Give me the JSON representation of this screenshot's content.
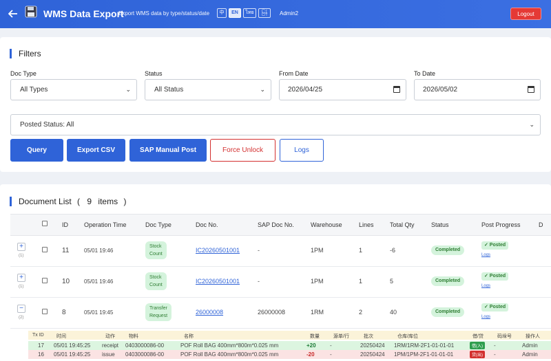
{
  "header": {
    "back_icon": "arrow-left-icon",
    "logo_icon": "floppy-disk-icon",
    "title": "WMS Data Export",
    "subtitle": "Export WMS data by type/status/date",
    "languages": [
      "中",
      "EN",
      "ไทย",
      "မြန်"
    ],
    "active_language": "EN",
    "user": "Admin2",
    "logout_label": "Logout"
  },
  "filters": {
    "title": "Filters",
    "doc_type_label": "Doc Type",
    "doc_type_value": "All Types",
    "status_label": "Status",
    "status_value": "All Status",
    "from_date_label": "From Date",
    "from_date_value": "2026/04/25",
    "to_date_label": "To Date",
    "to_date_value": "2026/05/02",
    "posted_status_value": "Posted Status: All",
    "buttons": {
      "query": "Query",
      "export_csv": "Export CSV",
      "sap_manual_post": "SAP Manual Post",
      "force_unlock": "Force Unlock",
      "logs": "Logs"
    }
  },
  "documents": {
    "title_prefix": "Document List",
    "open_paren": "(",
    "count": "9",
    "items_label": "items",
    "close_paren": ")",
    "columns": [
      "ID",
      "Operation Time",
      "Doc Type",
      "Doc No.",
      "SAP Doc No.",
      "Warehouse",
      "Lines",
      "Total Qty",
      "Status",
      "Post Progress",
      "D"
    ],
    "rows": [
      {
        "expander": "+",
        "sub_count": "(1)",
        "id": "11",
        "time": "05/01 19:46",
        "doc_type_1": "Stock",
        "doc_type_2": "Count",
        "doc_no": "IC20260501001",
        "sap_doc_no": "-",
        "warehouse": "1PM",
        "lines": "1",
        "total_qty": "-6",
        "status": "Completed",
        "post": "✓ Posted",
        "logs": "Logs"
      },
      {
        "expander": "+",
        "sub_count": "(1)",
        "id": "10",
        "time": "05/01 19:46",
        "doc_type_1": "Stock",
        "doc_type_2": "Count",
        "doc_no": "IC20260501001",
        "sap_doc_no": "-",
        "warehouse": "1PM",
        "lines": "1",
        "total_qty": "5",
        "status": "Completed",
        "post": "✓ Posted",
        "logs": "Logs"
      },
      {
        "expander": "−",
        "sub_count": "(2)",
        "id": "8",
        "time": "05/01 19:45",
        "doc_type_1": "Transfer",
        "doc_type_2": "Request",
        "doc_no": "26000008",
        "sap_doc_no": "26000008",
        "warehouse": "1RM",
        "lines": "2",
        "total_qty": "40",
        "status": "Completed",
        "post": "✓ Posted",
        "logs": "Logs"
      }
    ]
  },
  "transactions": {
    "columns": [
      "Tx ID",
      "时间",
      "动作",
      "物料",
      "名称",
      "数量",
      "源单/行",
      "批次",
      "仓库/库位",
      "借/贷",
      "码垛号",
      "操作人"
    ],
    "rows": [
      {
        "tx_id": "17",
        "time": "05/01 19:45:25",
        "action": "receipt",
        "material": "0403000086-00",
        "name": "POF Roll BAG 400mm*800m*0.025 mm",
        "qty": "+20",
        "src": "-",
        "batch": "20250424",
        "location": "1RM/1RM-2F1-01-01-01",
        "dc": "借(入)",
        "pallet": "-",
        "operator": "Admin"
      },
      {
        "tx_id": "16",
        "time": "05/01 19:45:25",
        "action": "issue",
        "material": "0403000086-00",
        "name": "POF Roll BAG 400mm*800m*0.025 mm",
        "qty": "-20",
        "src": "-",
        "batch": "20250424",
        "location": "1PM/1PM-2F1-01-01-01",
        "dc": "贷(出)",
        "pallet": "-",
        "operator": "Admin"
      }
    ]
  },
  "colors": {
    "primary": "#2f63d8",
    "danger": "#d32f2f",
    "success_bg": "#d4f3dc",
    "success_text": "#2e7d32"
  }
}
